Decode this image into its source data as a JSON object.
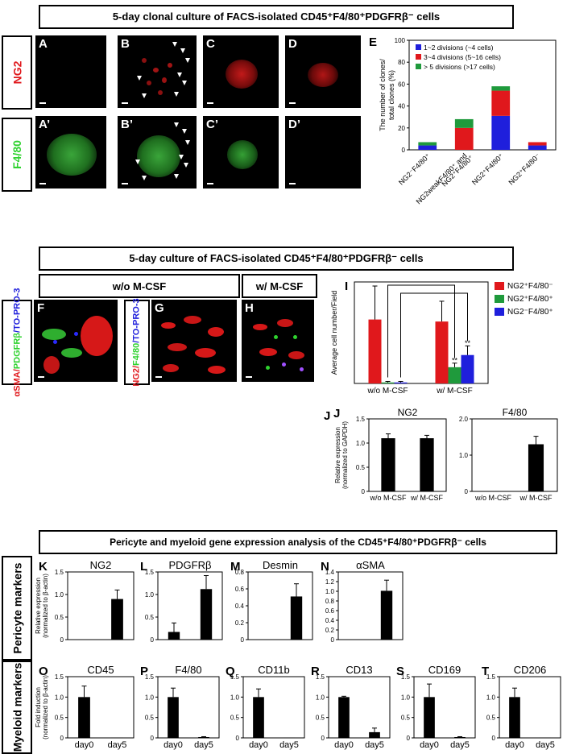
{
  "titles": {
    "top": "5-day clonal culture of FACS-isolated CD45⁺F4/80⁺PDGFRβ⁻ cells",
    "mid": "5-day culture of FACS-isolated CD45⁺F4/80⁺PDGFRβ⁻ cells",
    "bottom": "Pericyte and myeloid gene expression analysis of the CD45⁺F4/80⁺PDGFRβ⁻ cells"
  },
  "row_labels": {
    "ng2": "NG2",
    "f480": "F4/80",
    "pericyte": "Pericyte markers",
    "myeloid": "Myeloid markers"
  },
  "panels_top": {
    "A": "A",
    "B": "B",
    "C": "C",
    "D": "D",
    "A2": "A’",
    "B2": "B’",
    "C2": "C’",
    "D2": "D’"
  },
  "mid_labels": {
    "wo_mcsf": "w/o M-CSF",
    "w_mcsf": "w/ M-CSF",
    "F": "F",
    "G": "G",
    "H": "H",
    "f_stain_1": "αSMA/",
    "f_stain_2": "PDGFRβ",
    "f_stain_3": "/TO-PRO-3",
    "g_stain_1": "NG2/",
    "g_stain_2": "F4/80",
    "g_stain_3": "/TO-PRO-3"
  },
  "chart_data": [
    {
      "id": "E",
      "type": "bar",
      "stacked": true,
      "panel": "E",
      "ylabel": "The number of clones/ total clones (%)",
      "ylim": [
        0,
        100
      ],
      "yticks": [
        0,
        20,
        40,
        60,
        80,
        100
      ],
      "categories": [
        "NG2⁻F4/80⁺",
        "NG2weakF4/80⁺ and NG2⁺F4/80⁺",
        "NG2⁺F4/80⁺",
        "NG2⁺F4/80⁻"
      ],
      "series": [
        {
          "name": "1~2 divisions (~4 cells)",
          "color": "#1f1fdc",
          "values": [
            4,
            0,
            31,
            4
          ]
        },
        {
          "name": "3~4 divisions (5~16 cells)",
          "color": "#e0181c",
          "values": [
            0,
            20,
            23,
            3
          ]
        },
        {
          "name": "> 5 divisions (>17 cells)",
          "color": "#1f9a3c",
          "values": [
            3,
            8,
            4,
            0
          ]
        }
      ]
    },
    {
      "id": "I",
      "type": "bar",
      "panel": "I",
      "ylabel": "Average cell number/Field",
      "ylim": [
        0,
        100
      ],
      "categories": [
        "w/o M-CSF",
        "w/ M-CSF"
      ],
      "series": [
        {
          "name": "NG2⁺F4/80⁻",
          "color": "#e0181c",
          "values": [
            63,
            61
          ],
          "err": [
            33,
            20
          ]
        },
        {
          "name": "NG2⁺F4/80⁺",
          "color": "#1f9a3c",
          "values": [
            1,
            16
          ],
          "err": [
            1,
            4
          ]
        },
        {
          "name": "NG2⁻F4/80⁺",
          "color": "#1f1fdc",
          "values": [
            1,
            28
          ],
          "err": [
            1,
            9
          ]
        }
      ],
      "annotations": [
        "**",
        "**"
      ]
    },
    {
      "id": "J1",
      "type": "bar",
      "panel": "J",
      "title": "NG2",
      "ylabel": "Relative expression (normalized to GAPDH)",
      "ylim": [
        0,
        1.5
      ],
      "yticks": [
        0,
        0.5,
        1.0,
        1.5
      ],
      "ytick_labels": [
        "0",
        "0.5",
        "1.0",
        "1.5"
      ],
      "categories": [
        "w/o M-CSF",
        "w/ M-CSF"
      ],
      "values": [
        1.1,
        1.1
      ],
      "err": [
        0.09,
        0.06
      ]
    },
    {
      "id": "J2",
      "type": "bar",
      "title": "F4/80",
      "ylim": [
        0,
        2.0
      ],
      "yticks": [
        0,
        1.0,
        2.0
      ],
      "ytick_labels": [
        "0",
        "1.0",
        "2.0"
      ],
      "categories": [
        "w/o M-CSF",
        "w/ M-CSF"
      ],
      "values": [
        0,
        1.3
      ],
      "err": [
        0,
        0.22
      ]
    },
    {
      "id": "K",
      "type": "bar",
      "panel": "K",
      "title": "NG2",
      "ylabel": "Relative expression (normalized to β-actin)",
      "ylim": [
        0,
        1.5
      ],
      "yticks": [
        0,
        0.5,
        1.0,
        1.5
      ],
      "ytick_labels": [
        "0",
        "0.5",
        "1.0",
        "1.5"
      ],
      "categories": [
        "",
        ""
      ],
      "values": [
        0,
        0.9
      ],
      "err": [
        0,
        0.2
      ]
    },
    {
      "id": "L",
      "type": "bar",
      "panel": "L",
      "title": "PDGFRβ",
      "ylim": [
        0,
        1.5
      ],
      "yticks": [
        0,
        0.5,
        1.0,
        1.5
      ],
      "ytick_labels": [
        "0",
        "0.5",
        "1.0",
        "1.5"
      ],
      "categories": [
        "",
        ""
      ],
      "values": [
        0.17,
        1.12
      ],
      "err": [
        0.2,
        0.3
      ]
    },
    {
      "id": "M",
      "type": "bar",
      "panel": "M",
      "title": "Desmin",
      "ylim": [
        0,
        0.8
      ],
      "yticks": [
        0,
        0.2,
        0.4,
        0.6,
        0.8
      ],
      "ytick_labels": [
        "0",
        "0.2",
        "0.4",
        "0.6",
        "0.8"
      ],
      "categories": [
        "",
        ""
      ],
      "values": [
        0,
        0.51
      ],
      "err": [
        0,
        0.15
      ]
    },
    {
      "id": "N",
      "type": "bar",
      "panel": "N",
      "title": "αSMA",
      "ylim": [
        0,
        1.4
      ],
      "yticks": [
        0,
        0.2,
        0.4,
        0.6,
        0.8,
        1.0,
        1.2,
        1.4
      ],
      "ytick_labels": [
        "0",
        "0.2",
        "0.4",
        "0.6",
        "0.8",
        "1.0",
        "1.2",
        "1.4"
      ],
      "categories": [
        "",
        ""
      ],
      "values": [
        0,
        1.01
      ],
      "err": [
        0,
        0.22
      ]
    },
    {
      "id": "O",
      "type": "bar",
      "panel": "O",
      "title": "CD45",
      "ylabel": "Fold induction (normalized to β-actin)",
      "ylim": [
        0,
        1.5
      ],
      "yticks": [
        0,
        0.5,
        1.0,
        1.5
      ],
      "ytick_labels": [
        "0",
        "0.5",
        "1.0",
        "1.5"
      ],
      "categories": [
        "day0",
        "day5"
      ],
      "values": [
        1.0,
        0.01
      ],
      "err": [
        0.27,
        0
      ]
    },
    {
      "id": "P",
      "type": "bar",
      "panel": "P",
      "title": "F4/80",
      "ylim": [
        0,
        1.5
      ],
      "yticks": [
        0,
        0.5,
        1.0,
        1.5
      ],
      "ytick_labels": [
        "0",
        "0.5",
        "1.0",
        "1.5"
      ],
      "categories": [
        "day0",
        "day5"
      ],
      "values": [
        1.0,
        0.02
      ],
      "err": [
        0.22,
        0.01
      ]
    },
    {
      "id": "Q",
      "type": "bar",
      "panel": "Q",
      "title": "CD11b",
      "ylim": [
        0,
        1.5
      ],
      "yticks": [
        0,
        0.5,
        1.0,
        1.5
      ],
      "ytick_labels": [
        "0",
        "0.5",
        "1.0",
        "1.5"
      ],
      "categories": [
        "day0",
        "day5"
      ],
      "values": [
        1.0,
        0.01
      ],
      "err": [
        0.2,
        0
      ]
    },
    {
      "id": "R",
      "type": "bar",
      "panel": "R",
      "title": "CD13",
      "ylim": [
        0,
        1.5
      ],
      "yticks": [
        0,
        0.5,
        1.0,
        1.5
      ],
      "ytick_labels": [
        "0",
        "0.5",
        "1.0",
        "1.5"
      ],
      "categories": [
        "day0",
        "day5"
      ],
      "values": [
        1.0,
        0.14
      ],
      "err": [
        0.02,
        0.1
      ]
    },
    {
      "id": "S",
      "type": "bar",
      "panel": "S",
      "title": "CD169",
      "ylim": [
        0,
        1.5
      ],
      "yticks": [
        0,
        0.5,
        1.0,
        1.5
      ],
      "ytick_labels": [
        "0",
        "0.5",
        "1.0",
        "1.5"
      ],
      "categories": [
        "day0",
        "day5"
      ],
      "values": [
        1.0,
        0.02
      ],
      "err": [
        0.32,
        0.01
      ]
    },
    {
      "id": "T",
      "type": "bar",
      "panel": "T",
      "title": "CD206",
      "ylim": [
        0,
        1.5
      ],
      "yticks": [
        0,
        0.5,
        1.0,
        1.5
      ],
      "ytick_labels": [
        "0",
        "0.5",
        "1.0",
        "1.5"
      ],
      "categories": [
        "day0",
        "day5"
      ],
      "values": [
        1.0,
        0.01
      ],
      "err": [
        0.22,
        0
      ]
    }
  ]
}
